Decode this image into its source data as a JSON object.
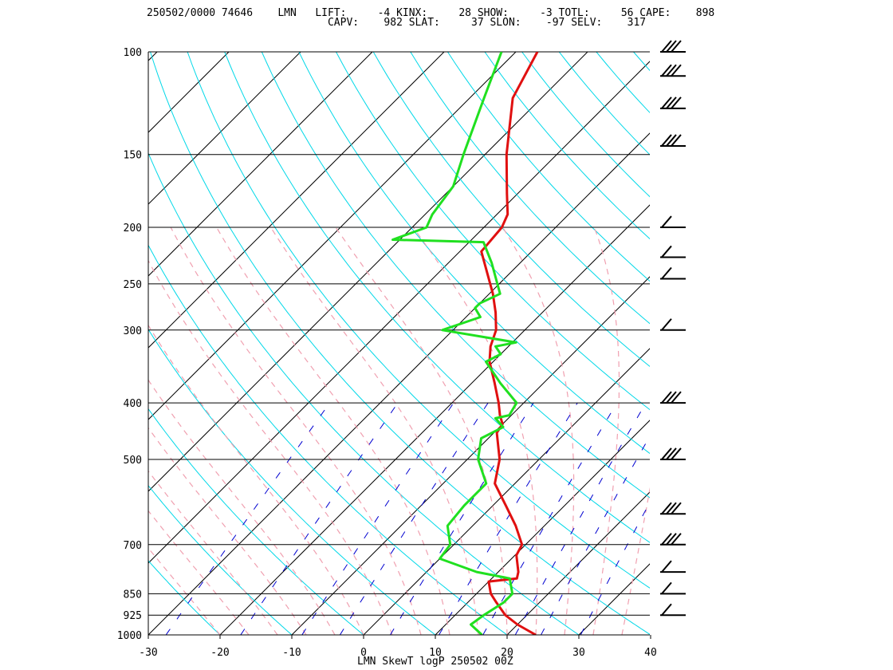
{
  "header": {
    "line1": "250502/0000 74646    LMN   LIFT:     -4 KINX:     28 SHOW:     -3 TOTL:     56 CAPE:    898",
    "line2": "                             CAPV:    982 SLAT:     37 SLON:    -97 SELV:    317"
  },
  "footer": "LMN SkewT logP 250502 00Z",
  "colors": {
    "temperature": "#e01010",
    "dewpoint": "#20e020",
    "dry_adiabat": "#00d8e8",
    "moist_adiabat": "#f0a0b0",
    "mixing_ratio": "#0000d0",
    "isotherm": "#000000",
    "isobar": "#000000"
  },
  "chart_data": {
    "type": "line",
    "title": "LMN SkewT logP 250502 00Z",
    "xlabel": "",
    "ylabel": "",
    "x_ticks": [
      -30,
      -20,
      -10,
      0,
      10,
      20,
      30,
      40
    ],
    "y_ticks": [
      100,
      150,
      200,
      250,
      300,
      400,
      500,
      700,
      850,
      925,
      1000
    ],
    "xlim": [
      -30,
      40
    ],
    "ylim": [
      1000,
      100
    ],
    "y_scale": "log",
    "grid": true,
    "series": [
      {
        "key": "temperature",
        "points": [
          [
            1000,
            24
          ],
          [
            960,
            20
          ],
          [
            925,
            17
          ],
          [
            880,
            14
          ],
          [
            850,
            12
          ],
          [
            810,
            10
          ],
          [
            800,
            13.5
          ],
          [
            780,
            12.8
          ],
          [
            730,
            10.2
          ],
          [
            700,
            9.5
          ],
          [
            650,
            6
          ],
          [
            600,
            1.8
          ],
          [
            550,
            -2.8
          ],
          [
            500,
            -5.5
          ],
          [
            450,
            -9.6
          ],
          [
            435,
            -10
          ],
          [
            420,
            -11.6
          ],
          [
            400,
            -13.5
          ],
          [
            370,
            -16.8
          ],
          [
            340,
            -20.5
          ],
          [
            320,
            -22.5
          ],
          [
            300,
            -24
          ],
          [
            280,
            -26.5
          ],
          [
            260,
            -29.5
          ],
          [
            220,
            -37
          ],
          [
            200,
            -37.5
          ],
          [
            190,
            -38.5
          ],
          [
            175,
            -41.5
          ],
          [
            150,
            -47
          ],
          [
            120,
            -54
          ],
          [
            100,
            -57
          ]
        ]
      },
      {
        "key": "dewpoint",
        "points": [
          [
            1000,
            16.5
          ],
          [
            960,
            13.5
          ],
          [
            925,
            14
          ],
          [
            880,
            15
          ],
          [
            850,
            15
          ],
          [
            800,
            12.5
          ],
          [
            780,
            7
          ],
          [
            740,
            0
          ],
          [
            700,
            -0.5
          ],
          [
            650,
            -3.5
          ],
          [
            600,
            -4
          ],
          [
            550,
            -4
          ],
          [
            500,
            -8.5
          ],
          [
            460,
            -11
          ],
          [
            440,
            -9.5
          ],
          [
            425,
            -11.8
          ],
          [
            420,
            -10.3
          ],
          [
            400,
            -11
          ],
          [
            370,
            -16
          ],
          [
            340,
            -21
          ],
          [
            330,
            -20
          ],
          [
            320,
            -21.8
          ],
          [
            315,
            -19.5
          ],
          [
            300,
            -31.5
          ],
          [
            285,
            -28
          ],
          [
            275,
            -30
          ],
          [
            270,
            -30
          ],
          [
            260,
            -28.5
          ],
          [
            230,
            -34
          ],
          [
            212,
            -38
          ],
          [
            210,
            -51
          ],
          [
            200,
            -48
          ],
          [
            190,
            -49
          ],
          [
            170,
            -50
          ],
          [
            150,
            -53
          ],
          [
            120,
            -58
          ],
          [
            100,
            -62
          ]
        ]
      }
    ],
    "winds": [
      {
        "p": 100,
        "barbs": "flags"
      },
      {
        "p": 110,
        "barbs": "flags"
      },
      {
        "p": 125,
        "barbs": "flags"
      },
      {
        "p": 145,
        "barbs": "flags"
      },
      {
        "p": 200,
        "barbs": "light"
      },
      {
        "p": 225,
        "barbs": "light"
      },
      {
        "p": 245,
        "barbs": "light"
      },
      {
        "p": 300,
        "barbs": "light"
      },
      {
        "p": 400,
        "barbs": "flags"
      },
      {
        "p": 500,
        "barbs": "flags"
      },
      {
        "p": 620,
        "barbs": "flags"
      },
      {
        "p": 700,
        "barbs": "flags"
      },
      {
        "p": 780,
        "barbs": "light"
      },
      {
        "p": 850,
        "barbs": "light"
      },
      {
        "p": 925,
        "barbs": "light"
      }
    ]
  }
}
